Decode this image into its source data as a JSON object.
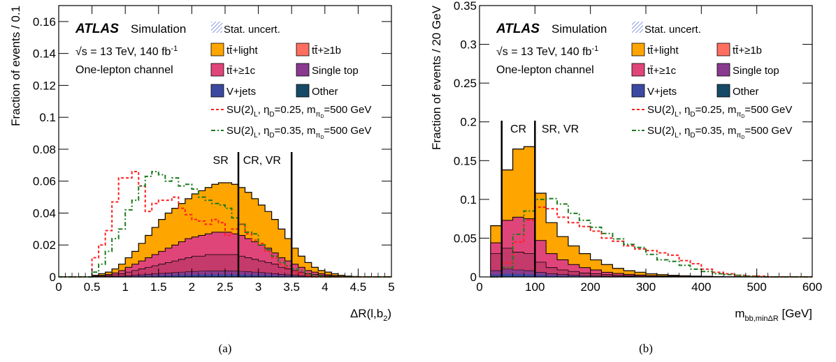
{
  "chart_data": [
    {
      "type": "stacked-histogram",
      "panel_caption": "(a)",
      "xlabel_main": "ΔR(l,b",
      "xlabel_sub": "2",
      "xlabel_close": ")",
      "ylabel": "Fraction of events / 0.1",
      "xlim": [
        0,
        5
      ],
      "ylim": [
        0,
        0.17
      ],
      "x_ticks": [
        "0",
        "0.5",
        "1",
        "1.5",
        "2",
        "2.5",
        "3",
        "3.5",
        "4",
        "4.5",
        "5"
      ],
      "y_ticks": [
        "0",
        "0.02",
        "0.04",
        "0.06",
        "0.08",
        "0.1",
        "0.12",
        "0.14",
        "0.16"
      ],
      "bin_edges_start": 0,
      "bin_width": 0.1,
      "stack_totals": [
        0,
        0,
        0,
        0,
        0,
        0.001,
        0.002,
        0.003,
        0.005,
        0.008,
        0.012,
        0.016,
        0.021,
        0.026,
        0.031,
        0.036,
        0.04,
        0.043,
        0.046,
        0.049,
        0.052,
        0.054,
        0.056,
        0.058,
        0.059,
        0.059,
        0.058,
        0.056,
        0.053,
        0.049,
        0.045,
        0.041,
        0.036,
        0.03,
        0.024,
        0.018,
        0.013,
        0.009,
        0.006,
        0.004,
        0.003,
        0.002,
        0.001,
        0.0005,
        0.0003,
        0,
        0,
        0,
        0,
        0
      ],
      "ttc_totals": [
        0,
        0,
        0,
        0,
        0,
        0.0005,
        0.001,
        0.0015,
        0.0025,
        0.004,
        0.006,
        0.008,
        0.01,
        0.012,
        0.014,
        0.016,
        0.018,
        0.02,
        0.022,
        0.024,
        0.025,
        0.026,
        0.027,
        0.028,
        0.028,
        0.028,
        0.027,
        0.026,
        0.024,
        0.022,
        0.02,
        0.018,
        0.015,
        0.012,
        0.01,
        0.008,
        0.006,
        0.004,
        0.003,
        0.002,
        0.0013,
        0.0008,
        0.0004,
        0.0002,
        0.0001,
        0,
        0,
        0,
        0,
        0
      ],
      "ttb_totals": [
        0,
        0,
        0,
        0,
        0,
        0.0002,
        0.0005,
        0.0008,
        0.0013,
        0.002,
        0.003,
        0.004,
        0.005,
        0.006,
        0.007,
        0.008,
        0.009,
        0.01,
        0.011,
        0.012,
        0.013,
        0.013,
        0.014,
        0.014,
        0.014,
        0.014,
        0.014,
        0.013,
        0.012,
        0.011,
        0.01,
        0.009,
        0.008,
        0.006,
        0.005,
        0.004,
        0.003,
        0.002,
        0.0015,
        0.001,
        0.0006,
        0.0004,
        0.0002,
        0.0001,
        0,
        0,
        0,
        0,
        0,
        0
      ],
      "minor_totals": [
        0,
        0,
        0,
        0,
        0,
        0,
        0.0001,
        0.0002,
        0.0003,
        0.0005,
        0.0007,
        0.001,
        0.0013,
        0.0016,
        0.0019,
        0.0022,
        0.0025,
        0.0027,
        0.003,
        0.0032,
        0.0034,
        0.0036,
        0.0037,
        0.0038,
        0.0038,
        0.0038,
        0.0037,
        0.0035,
        0.0033,
        0.003,
        0.0027,
        0.0024,
        0.002,
        0.0016,
        0.0013,
        0.001,
        0.0007,
        0.0005,
        0.0003,
        0.0002,
        0.0001,
        0,
        0,
        0,
        0,
        0,
        0,
        0,
        0,
        0
      ],
      "signal_025": [
        0,
        0,
        0,
        0,
        0,
        0.012,
        0.02,
        0.029,
        0.047,
        0.062,
        0.062,
        0.066,
        0.057,
        0.041,
        0.046,
        0.048,
        0.048,
        0.05,
        0.043,
        0.039,
        0.036,
        0.035,
        0.033,
        0.036,
        0.034,
        0.026,
        0.03,
        0.033,
        0.027,
        0.023,
        0.021,
        0.016,
        0.012,
        0.008,
        0.006,
        0.003,
        0.002,
        0.001,
        0,
        0,
        0,
        0,
        0,
        0,
        0,
        0,
        0,
        0,
        0,
        0
      ],
      "signal_035": [
        0,
        0,
        0,
        0,
        0,
        0.003,
        0.008,
        0.016,
        0.024,
        0.03,
        0.042,
        0.048,
        0.057,
        0.063,
        0.066,
        0.064,
        0.06,
        0.062,
        0.057,
        0.058,
        0.055,
        0.05,
        0.048,
        0.046,
        0.045,
        0.043,
        0.037,
        0.033,
        0.028,
        0.027,
        0.02,
        0.017,
        0.013,
        0.009,
        0.007,
        0.005,
        0.004,
        0.002,
        0.001,
        0.0005,
        0,
        0,
        0,
        0,
        0,
        0,
        0,
        0,
        0,
        0
      ],
      "cut_lines": [
        2.7,
        3.5
      ],
      "region_labels": [
        "SR",
        "CR, VR"
      ]
    },
    {
      "type": "stacked-histogram",
      "panel_caption": "(b)",
      "xlabel_main": "m",
      "xlabel_sub": "bb,minΔR",
      "xlabel_close": " [GeV]",
      "ylabel": "Fraction of events / 20 GeV",
      "xlim": [
        0,
        600
      ],
      "ylim": [
        0,
        0.35
      ],
      "x_ticks": [
        "0",
        "100",
        "200",
        "300",
        "400",
        "500",
        "600"
      ],
      "y_ticks": [
        "0",
        "0.05",
        "0.1",
        "0.15",
        "0.2",
        "0.25",
        "0.3",
        "0.35"
      ],
      "bin_edges_start": 20,
      "bin_width": 20,
      "stack_totals": [
        0.066,
        0.138,
        0.165,
        0.168,
        0.108,
        0.07,
        0.052,
        0.04,
        0.03,
        0.022,
        0.016,
        0.011,
        0.008,
        0.006,
        0.004,
        0.003,
        0.002,
        0.0015,
        0.001,
        0.0008,
        0.0005,
        0.0003,
        0.0002,
        0.0001,
        0.0001,
        0,
        0,
        0,
        0
      ],
      "ttc_totals": [
        0.044,
        0.073,
        0.077,
        0.075,
        0.047,
        0.03,
        0.022,
        0.016,
        0.012,
        0.009,
        0.006,
        0.0045,
        0.0033,
        0.0024,
        0.0017,
        0.0012,
        0.0009,
        0.0006,
        0.0004,
        0.0003,
        0.0002,
        0.0001,
        0.0001,
        0,
        0,
        0,
        0,
        0,
        0
      ],
      "ttb_totals": [
        0.03,
        0.037,
        0.032,
        0.03,
        0.019,
        0.012,
        0.009,
        0.007,
        0.005,
        0.004,
        0.003,
        0.002,
        0.0015,
        0.001,
        0.0007,
        0.0005,
        0.0003,
        0.0002,
        0.0001,
        0.0001,
        0,
        0,
        0,
        0,
        0,
        0,
        0,
        0,
        0
      ],
      "minor_totals": [
        0.008,
        0.01,
        0.009,
        0.008,
        0.006,
        0.004,
        0.003,
        0.0024,
        0.0018,
        0.0013,
        0.001,
        0.0008,
        0.0006,
        0.0004,
        0.0003,
        0.0002,
        0.0001,
        0.0001,
        0,
        0,
        0,
        0,
        0,
        0,
        0,
        0,
        0,
        0,
        0
      ],
      "signal_025": [
        0,
        0.018,
        0.045,
        0.073,
        0.09,
        0.088,
        0.077,
        0.07,
        0.065,
        0.059,
        0.05,
        0.046,
        0.04,
        0.036,
        0.034,
        0.031,
        0.028,
        0.021,
        0.017,
        0.01,
        0.006,
        0.004,
        0.002,
        0.001,
        0.001,
        0,
        0,
        0,
        0
      ],
      "signal_035": [
        0,
        0.012,
        0.055,
        0.085,
        0.1,
        0.101,
        0.094,
        0.082,
        0.073,
        0.064,
        0.056,
        0.049,
        0.042,
        0.038,
        0.029,
        0.022,
        0.02,
        0.015,
        0.01,
        0.007,
        0.004,
        0.003,
        0.002,
        0.001,
        0,
        0,
        0,
        0,
        0
      ],
      "cut_lines": [
        40,
        100
      ],
      "region_labels": [
        "CR",
        "SR, VR"
      ]
    }
  ],
  "legend": {
    "experiment": "ATLAS",
    "simulation": "Simulation",
    "sqrt_s": "s = 13 TeV, 140 fb",
    "lumi_exp": "-1",
    "channel": "One-lepton channel",
    "stat_uncert": "Stat. uncert.",
    "tt_light": "tt̄+light",
    "tt_b": "tt̄+≥1b",
    "tt_c": "tt̄+≥1c",
    "single_top": "Single top",
    "vjets": "V+jets",
    "other": "Other",
    "sig1_main": "SU(2)",
    "sig1_rest": ", η",
    "sig1_val": "=0.25, m",
    "sig1_mass": "=500 GeV",
    "sig2_val": "=0.35, m",
    "sub_L": "L",
    "sub_D": "D",
    "sub_piD": "π",
    "sub_piD2": "D"
  },
  "colors": {
    "tt_light": "#ffa500",
    "tt_b": "#ff6f5f",
    "tt_c": "#e0457a",
    "single_top": "#8a3a8e",
    "vjets": "#3b4aa0",
    "other": "#174a66",
    "sig1": "#ff2020",
    "sig2": "#1d7a1d"
  }
}
